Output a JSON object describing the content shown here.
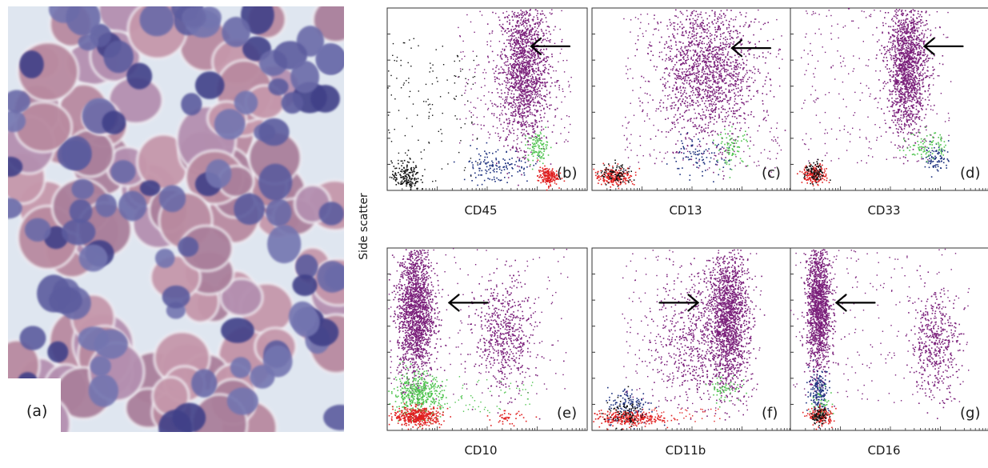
{
  "figure": {
    "y_axis_label": "Side scatter",
    "micrograph_label": "(a)"
  },
  "chart_data": [
    {
      "type": "scatter",
      "panel_label": "(b)",
      "xlabel": "CD45",
      "ylabel": "Side scatter",
      "x_scale": "log",
      "xlim": [
        0,
        1
      ],
      "ylim": [
        0,
        1
      ],
      "grid": false,
      "arrow": {
        "target_x": 0.72,
        "target_y": 0.79,
        "direction": "left"
      },
      "series": [
        {
          "color": "#7a1f7a",
          "clusters": [
            {
              "cx": 0.68,
              "cy": 0.66,
              "sx": 0.06,
              "sy": 0.2,
              "n": 1500
            }
          ],
          "scatter_n": 230,
          "scatter_box": [
            0.35,
            0.92,
            0.25,
            1.0
          ]
        },
        {
          "color": "#1b2f7d",
          "clusters": [
            {
              "cx": 0.54,
              "cy": 0.14,
              "sx": 0.09,
              "sy": 0.05,
              "n": 140
            }
          ]
        },
        {
          "color": "#4fc44f",
          "clusters": [
            {
              "cx": 0.75,
              "cy": 0.24,
              "sx": 0.025,
              "sy": 0.04,
              "n": 110
            }
          ]
        },
        {
          "color": "#e02020",
          "clusters": [
            {
              "cx": 0.8,
              "cy": 0.08,
              "sx": 0.025,
              "sy": 0.025,
              "n": 180
            }
          ]
        },
        {
          "color": "#111111",
          "clusters": [
            {
              "cx": 0.09,
              "cy": 0.08,
              "sx": 0.035,
              "sy": 0.04,
              "n": 170
            }
          ],
          "scatter_n": 130,
          "scatter_box": [
            0.0,
            0.45,
            0.02,
            0.85
          ]
        }
      ]
    },
    {
      "type": "scatter",
      "panel_label": "(c)",
      "xlabel": "CD13",
      "ylabel": "Side scatter",
      "x_scale": "log",
      "xlim": [
        0,
        1
      ],
      "ylim": [
        0,
        1
      ],
      "grid": false,
      "arrow": {
        "target_x": 0.7,
        "target_y": 0.78,
        "direction": "left"
      },
      "series": [
        {
          "color": "#7a1f7a",
          "clusters": [
            {
              "cx": 0.58,
              "cy": 0.66,
              "sx": 0.12,
              "sy": 0.19,
              "n": 1500
            }
          ],
          "scatter_n": 300,
          "scatter_box": [
            0.15,
            0.95,
            0.1,
            1.0
          ]
        },
        {
          "color": "#1b2f7d",
          "clusters": [
            {
              "cx": 0.52,
              "cy": 0.18,
              "sx": 0.08,
              "sy": 0.05,
              "n": 90
            }
          ]
        },
        {
          "color": "#4fc44f",
          "clusters": [
            {
              "cx": 0.7,
              "cy": 0.24,
              "sx": 0.04,
              "sy": 0.05,
              "n": 80
            }
          ]
        },
        {
          "color": "#e02020",
          "clusters": [
            {
              "cx": 0.11,
              "cy": 0.08,
              "sx": 0.05,
              "sy": 0.025,
              "n": 220
            }
          ]
        },
        {
          "color": "#111111",
          "clusters": [
            {
              "cx": 0.12,
              "cy": 0.09,
              "sx": 0.04,
              "sy": 0.03,
              "n": 90
            }
          ]
        }
      ]
    },
    {
      "type": "scatter",
      "panel_label": "(d)",
      "xlabel": "CD33",
      "ylabel": "Side scatter",
      "x_scale": "log",
      "xlim": [
        0,
        1
      ],
      "ylim": [
        0,
        1
      ],
      "grid": false,
      "arrow": {
        "target_x": 0.67,
        "target_y": 0.79,
        "direction": "left"
      },
      "series": [
        {
          "color": "#7a1f7a",
          "clusters": [
            {
              "cx": 0.58,
              "cy": 0.68,
              "sx": 0.05,
              "sy": 0.18,
              "n": 1500
            }
          ],
          "scatter_n": 260,
          "scatter_box": [
            0.05,
            0.8,
            0.15,
            1.0
          ]
        },
        {
          "color": "#1b2f7d",
          "clusters": [
            {
              "cx": 0.73,
              "cy": 0.18,
              "sx": 0.03,
              "sy": 0.04,
              "n": 80
            }
          ]
        },
        {
          "color": "#4fc44f",
          "clusters": [
            {
              "cx": 0.68,
              "cy": 0.25,
              "sx": 0.05,
              "sy": 0.04,
              "n": 90
            }
          ]
        },
        {
          "color": "#e02020",
          "clusters": [
            {
              "cx": 0.12,
              "cy": 0.09,
              "sx": 0.03,
              "sy": 0.025,
              "n": 200
            }
          ]
        },
        {
          "color": "#111111",
          "clusters": [
            {
              "cx": 0.12,
              "cy": 0.1,
              "sx": 0.025,
              "sy": 0.03,
              "n": 90
            }
          ]
        }
      ]
    },
    {
      "type": "scatter",
      "panel_label": "(e)",
      "xlabel": "CD10",
      "ylabel": "Side scatter",
      "x_scale": "log",
      "xlim": [
        0,
        1
      ],
      "ylim": [
        0,
        1
      ],
      "grid": false,
      "arrow": {
        "target_x": 0.31,
        "target_y": 0.7,
        "direction": "left"
      },
      "series": [
        {
          "color": "#7a1f7a",
          "clusters": [
            {
              "cx": 0.14,
              "cy": 0.66,
              "sx": 0.045,
              "sy": 0.19,
              "n": 1700
            },
            {
              "cx": 0.58,
              "cy": 0.52,
              "sx": 0.07,
              "sy": 0.15,
              "n": 550
            }
          ],
          "scatter_n": 200,
          "scatter_box": [
            0.0,
            0.9,
            0.2,
            1.0
          ]
        },
        {
          "color": "#4fc44f",
          "clusters": [
            {
              "cx": 0.15,
              "cy": 0.2,
              "sx": 0.06,
              "sy": 0.06,
              "n": 450
            }
          ],
          "scatter_n": 60,
          "scatter_box": [
            0.25,
            0.75,
            0.1,
            0.3
          ]
        },
        {
          "color": "#e02020",
          "clusters": [
            {
              "cx": 0.15,
              "cy": 0.08,
              "sx": 0.06,
              "sy": 0.025,
              "n": 420
            },
            {
              "cx": 0.6,
              "cy": 0.07,
              "sx": 0.04,
              "sy": 0.02,
              "n": 40
            }
          ]
        }
      ]
    },
    {
      "type": "scatter",
      "panel_label": "(f)",
      "xlabel": "CD11b",
      "ylabel": "Side scatter",
      "x_scale": "log",
      "xlim": [
        0,
        1
      ],
      "ylim": [
        0,
        1
      ],
      "grid": false,
      "arrow": {
        "target_x": 0.53,
        "target_y": 0.7,
        "direction": "right"
      },
      "series": [
        {
          "color": "#7a1f7a",
          "clusters": [
            {
              "cx": 0.68,
              "cy": 0.62,
              "sx": 0.05,
              "sy": 0.19,
              "n": 1500
            },
            {
              "cx": 0.52,
              "cy": 0.5,
              "sx": 0.1,
              "sy": 0.18,
              "n": 550
            }
          ],
          "scatter_n": 250,
          "scatter_box": [
            0.15,
            0.85,
            0.1,
            1.0
          ]
        },
        {
          "color": "#1b2f7d",
          "clusters": [
            {
              "cx": 0.19,
              "cy": 0.14,
              "sx": 0.06,
              "sy": 0.05,
              "n": 140
            }
          ]
        },
        {
          "color": "#4fc44f",
          "clusters": [
            {
              "cx": 0.66,
              "cy": 0.24,
              "sx": 0.04,
              "sy": 0.04,
              "n": 60
            }
          ]
        },
        {
          "color": "#e02020",
          "clusters": [
            {
              "cx": 0.17,
              "cy": 0.07,
              "sx": 0.09,
              "sy": 0.02,
              "n": 300
            }
          ],
          "scatter_n": 40,
          "scatter_box": [
            0.25,
            0.65,
            0.05,
            0.12
          ]
        },
        {
          "color": "#111111",
          "clusters": [
            {
              "cx": 0.16,
              "cy": 0.1,
              "sx": 0.05,
              "sy": 0.04,
              "n": 80
            }
          ]
        }
      ]
    },
    {
      "type": "scatter",
      "panel_label": "(g)",
      "xlabel": "CD16",
      "ylabel": "Side scatter",
      "x_scale": "log",
      "xlim": [
        0,
        1
      ],
      "ylim": [
        0,
        1
      ],
      "grid": false,
      "arrow": {
        "target_x": 0.23,
        "target_y": 0.7,
        "direction": "left"
      },
      "series": [
        {
          "color": "#7a1f7a",
          "clusters": [
            {
              "cx": 0.14,
              "cy": 0.68,
              "sx": 0.03,
              "sy": 0.18,
              "n": 1400
            },
            {
              "cx": 0.72,
              "cy": 0.48,
              "sx": 0.06,
              "sy": 0.14,
              "n": 450
            }
          ],
          "scatter_n": 240,
          "scatter_box": [
            0.0,
            0.9,
            0.15,
            1.0
          ]
        },
        {
          "color": "#1b2f7d",
          "clusters": [
            {
              "cx": 0.14,
              "cy": 0.22,
              "sx": 0.025,
              "sy": 0.06,
              "n": 170
            }
          ]
        },
        {
          "color": "#4fc44f",
          "clusters": [
            {
              "cx": 0.16,
              "cy": 0.14,
              "sx": 0.03,
              "sy": 0.04,
              "n": 50
            }
          ]
        },
        {
          "color": "#e02020",
          "clusters": [
            {
              "cx": 0.15,
              "cy": 0.08,
              "sx": 0.03,
              "sy": 0.025,
              "n": 150
            }
          ]
        },
        {
          "color": "#111111",
          "clusters": [
            {
              "cx": 0.14,
              "cy": 0.08,
              "sx": 0.02,
              "sy": 0.02,
              "n": 80
            }
          ]
        }
      ]
    }
  ]
}
